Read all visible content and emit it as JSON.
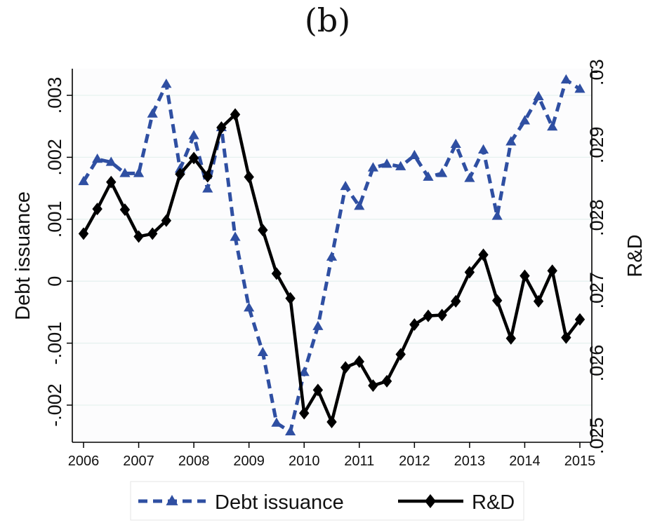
{
  "figure_label": "(b)",
  "colors": {
    "debt": "#2f4fa2",
    "rd": "#000000",
    "grid": "#e6f1ef",
    "plot_bg": "#fcfcfd"
  },
  "chart_data": {
    "type": "line",
    "x": [
      2006.0,
      2006.25,
      2006.5,
      2006.75,
      2007.0,
      2007.25,
      2007.5,
      2007.75,
      2008.0,
      2008.25,
      2008.5,
      2008.75,
      2009.0,
      2009.25,
      2009.5,
      2009.75,
      2010.0,
      2010.25,
      2010.5,
      2010.75,
      2011.0,
      2011.25,
      2011.5,
      2011.75,
      2012.0,
      2012.25,
      2012.5,
      2012.75,
      2013.0,
      2013.25,
      2013.5,
      2013.75,
      2014.0,
      2014.25,
      2014.5,
      2014.75,
      2015.0
    ],
    "xticks": [
      2006,
      2007,
      2008,
      2009,
      2010,
      2011,
      2012,
      2013,
      2014,
      2015
    ],
    "xlim": [
      2006,
      2015
    ],
    "y_left": {
      "label": "Debt issuance",
      "ticks": [
        -0.002,
        -0.001,
        0,
        0.001,
        0.002,
        0.003
      ],
      "tick_labels": [
        "-.002",
        "-.001",
        "0",
        ".001",
        ".002",
        ".003"
      ],
      "range": [
        -0.0026,
        0.00343
      ]
    },
    "y_right": {
      "label": "R&D",
      "ticks": [
        0.025,
        0.026,
        0.027,
        0.028,
        0.029,
        0.03
      ],
      "tick_labels": [
        ".025",
        ".026",
        ".027",
        ".028",
        ".029",
        ".03"
      ],
      "range": [
        0.02491,
        0.03005
      ]
    },
    "series": [
      {
        "name": "Debt issuance",
        "axis": "left",
        "style": "dashed",
        "marker": "triangle",
        "values": [
          0.00161,
          0.00197,
          0.00192,
          0.00174,
          0.00174,
          0.0027,
          0.00318,
          0.00181,
          0.00235,
          0.00149,
          0.00248,
          0.00071,
          -0.00043,
          -0.00115,
          -0.00229,
          -0.00243,
          -0.00147,
          -0.00073,
          0.00039,
          0.00153,
          0.00121,
          0.00183,
          0.00189,
          0.00185,
          0.00203,
          0.00168,
          0.00174,
          0.00221,
          0.00166,
          0.00212,
          0.00105,
          0.00225,
          0.00259,
          0.00298,
          0.00249,
          0.00325,
          0.0031
        ]
      },
      {
        "name": "R&D",
        "axis": "right",
        "style": "solid",
        "marker": "diamond",
        "values": [
          0.02778,
          0.02812,
          0.02849,
          0.02811,
          0.02774,
          0.02778,
          0.02796,
          0.0286,
          0.02882,
          0.02857,
          0.02924,
          0.02942,
          0.02856,
          0.02783,
          0.02723,
          0.02689,
          0.02531,
          0.02563,
          0.02519,
          0.02594,
          0.02602,
          0.02569,
          0.02575,
          0.02612,
          0.02653,
          0.02665,
          0.02666,
          0.02685,
          0.02725,
          0.02749,
          0.02686,
          0.02634,
          0.0272,
          0.02685,
          0.02727,
          0.02635,
          0.0266
        ]
      }
    ],
    "legend": {
      "position": "bottom",
      "entries": [
        "Debt issuance",
        "R&D"
      ]
    },
    "grid": true
  }
}
